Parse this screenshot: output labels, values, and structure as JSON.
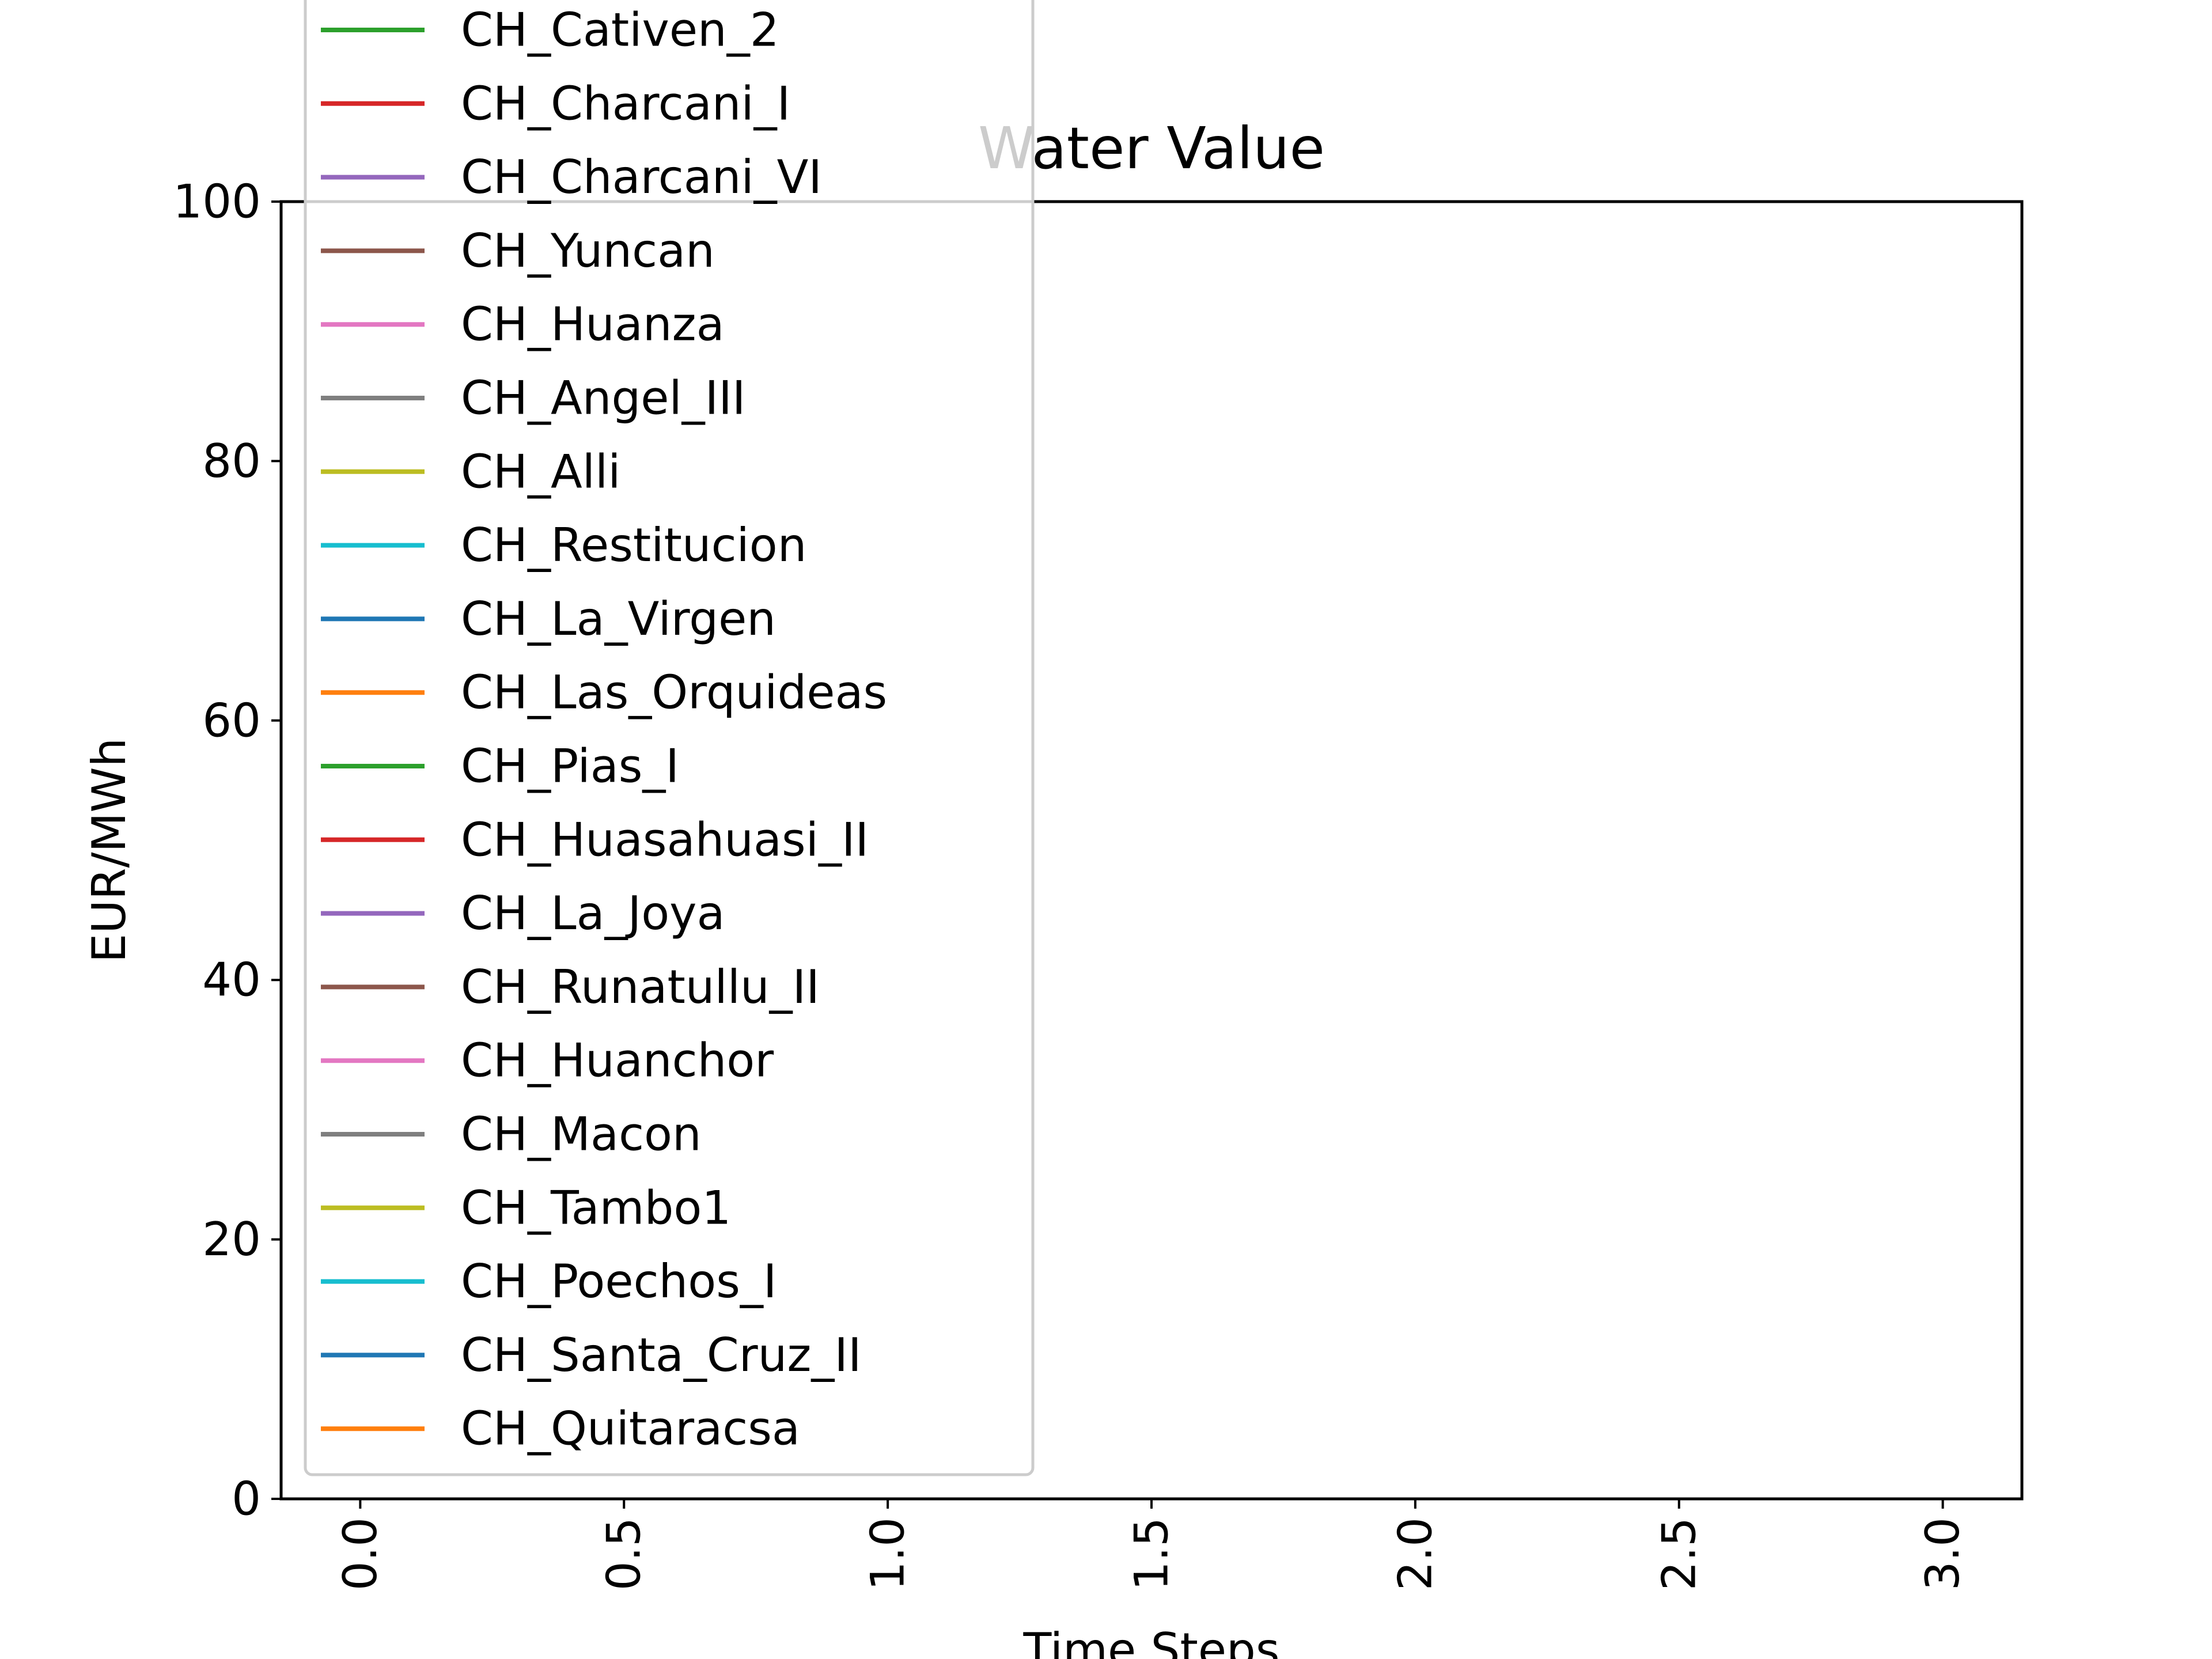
{
  "chart_data": {
    "type": "line",
    "title": "Water Value",
    "xlabel": "Time Steps",
    "ylabel": "EUR/MWh",
    "xlim": [
      -0.15,
      3.15
    ],
    "ylim": [
      0,
      100
    ],
    "x_ticks": [
      "0.0",
      "0.5",
      "1.0",
      "1.5",
      "2.0",
      "2.5",
      "3.0"
    ],
    "y_ticks": [
      "0",
      "20",
      "40",
      "60",
      "80",
      "100"
    ],
    "x_tick_values": [
      0,
      0.5,
      1.0,
      1.5,
      2.0,
      2.5,
      3.0
    ],
    "y_tick_values": [
      0,
      20,
      40,
      60,
      80,
      100
    ],
    "x_tick_rotation": "vertical",
    "grid": false,
    "legend_position": "upper-left (overflowing top of axes)",
    "x": [
      0,
      1,
      2,
      3
    ],
    "series": [
      {
        "name": "CH_Cativen_2",
        "color": "#2ca02c",
        "values": [
          0,
          0,
          0,
          0
        ]
      },
      {
        "name": "CH_Charcani_I",
        "color": "#d62728",
        "values": [
          0,
          0,
          0,
          0
        ]
      },
      {
        "name": "CH_Charcani_VI",
        "color": "#9467bd",
        "values": [
          0,
          0,
          0,
          0
        ]
      },
      {
        "name": "CH_Yuncan",
        "color": "#8c564b",
        "values": [
          0,
          0,
          0,
          0
        ]
      },
      {
        "name": "CH_Huanza",
        "color": "#e377c2",
        "values": [
          0,
          0,
          0,
          0
        ]
      },
      {
        "name": "CH_Angel_III",
        "color": "#7f7f7f",
        "values": [
          0,
          0,
          0,
          0
        ]
      },
      {
        "name": "CH_Alli",
        "color": "#bcbd22",
        "values": [
          0,
          0,
          0,
          0
        ]
      },
      {
        "name": "CH_Restitucion",
        "color": "#17becf",
        "values": [
          0,
          0,
          0,
          0
        ]
      },
      {
        "name": "CH_La_Virgen",
        "color": "#1f77b4",
        "values": [
          0,
          0,
          0,
          0
        ]
      },
      {
        "name": "CH_Las_Orquideas",
        "color": "#ff7f0e",
        "values": [
          0,
          0,
          0,
          0
        ]
      },
      {
        "name": "CH_Pias_I",
        "color": "#2ca02c",
        "values": [
          0,
          0,
          0,
          0
        ]
      },
      {
        "name": "CH_Huasahuasi_II",
        "color": "#d62728",
        "values": [
          0,
          0,
          0,
          0
        ]
      },
      {
        "name": "CH_La_Joya",
        "color": "#9467bd",
        "values": [
          0,
          0,
          0,
          0
        ]
      },
      {
        "name": "CH_Runatullu_II",
        "color": "#8c564b",
        "values": [
          0,
          0,
          0,
          0
        ]
      },
      {
        "name": "CH_Huanchor",
        "color": "#e377c2",
        "values": [
          0,
          0,
          0,
          0
        ]
      },
      {
        "name": "CH_Macon",
        "color": "#7f7f7f",
        "values": [
          0,
          0,
          0,
          0
        ]
      },
      {
        "name": "CH_Tambo1",
        "color": "#bcbd22",
        "values": [
          0,
          0,
          0,
          0
        ]
      },
      {
        "name": "CH_Poechos_I",
        "color": "#17becf",
        "values": [
          0,
          0,
          0,
          0
        ]
      },
      {
        "name": "CH_Santa_Cruz_II",
        "color": "#1f77b4",
        "values": [
          0,
          0,
          0,
          0
        ]
      },
      {
        "name": "CH_Quitaracsa",
        "color": "#ff7f0e",
        "values": [
          0,
          0,
          0,
          0
        ]
      }
    ]
  }
}
